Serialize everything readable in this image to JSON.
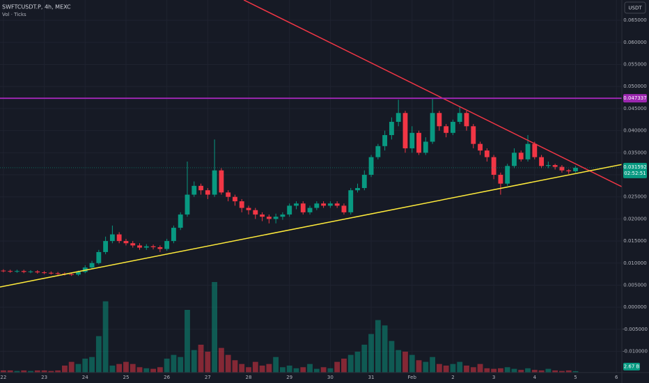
{
  "chart_data": {
    "type": "candlestick",
    "title": "SWFTCUSDT.P, 4h, MEXC",
    "subtitle": "Vol · Ticks",
    "currency": "USDT",
    "x": [
      0,
      1,
      2,
      3,
      4,
      5,
      6,
      7,
      8,
      9,
      10,
      11,
      12,
      13,
      14,
      15,
      16,
      17,
      18,
      19,
      20,
      21,
      22,
      23,
      24,
      25,
      26,
      27,
      28,
      29,
      30,
      31,
      32,
      33,
      34,
      35,
      36,
      37,
      38,
      39,
      40,
      41,
      42,
      43,
      44,
      45,
      46,
      47,
      48,
      49,
      50,
      51,
      52,
      53,
      54,
      55,
      56,
      57,
      58,
      59,
      60,
      61,
      62,
      63,
      64,
      65,
      66,
      67,
      68,
      69,
      70,
      71,
      72,
      73,
      74,
      75,
      76,
      77,
      78,
      79,
      80,
      81,
      82,
      83,
      84
    ],
    "open": [
      0.0083,
      0.0082,
      0.0081,
      0.0082,
      0.008,
      0.0081,
      0.0079,
      0.0078,
      0.0077,
      0.0076,
      0.0075,
      0.0074,
      0.008,
      0.009,
      0.01,
      0.0125,
      0.015,
      0.0165,
      0.015,
      0.0145,
      0.014,
      0.0135,
      0.0138,
      0.0136,
      0.0132,
      0.015,
      0.018,
      0.021,
      0.0255,
      0.0275,
      0.0265,
      0.0255,
      0.031,
      0.026,
      0.025,
      0.024,
      0.0225,
      0.022,
      0.021,
      0.0205,
      0.02,
      0.0205,
      0.021,
      0.023,
      0.0235,
      0.0215,
      0.0225,
      0.0235,
      0.023,
      0.0235,
      0.023,
      0.0215,
      0.0265,
      0.027,
      0.03,
      0.034,
      0.0365,
      0.039,
      0.042,
      0.044,
      0.036,
      0.0395,
      0.035,
      0.0375,
      0.044,
      0.041,
      0.0395,
      0.042,
      0.044,
      0.041,
      0.037,
      0.0355,
      0.034,
      0.03,
      0.028,
      0.032,
      0.035,
      0.0335,
      0.037,
      0.034,
      0.032,
      0.0322,
      0.0318,
      0.031,
      0.0308
    ],
    "high": [
      0.0086,
      0.0085,
      0.0085,
      0.0085,
      0.0084,
      0.0084,
      0.0082,
      0.0081,
      0.008,
      0.0079,
      0.0078,
      0.0083,
      0.0095,
      0.0105,
      0.013,
      0.016,
      0.0185,
      0.017,
      0.0155,
      0.015,
      0.0145,
      0.0143,
      0.0142,
      0.014,
      0.0155,
      0.0185,
      0.0215,
      0.033,
      0.0285,
      0.028,
      0.027,
      0.038,
      0.0315,
      0.0265,
      0.0255,
      0.0245,
      0.023,
      0.0225,
      0.0215,
      0.021,
      0.0212,
      0.0215,
      0.0235,
      0.024,
      0.024,
      0.023,
      0.024,
      0.024,
      0.024,
      0.024,
      0.0235,
      0.027,
      0.028,
      0.031,
      0.0345,
      0.037,
      0.04,
      0.043,
      0.047,
      0.0445,
      0.041,
      0.04,
      0.0385,
      0.0472,
      0.0445,
      0.0415,
      0.0425,
      0.0455,
      0.0445,
      0.0415,
      0.0375,
      0.036,
      0.0345,
      0.0305,
      0.0325,
      0.036,
      0.0355,
      0.039,
      0.0375,
      0.0345,
      0.033,
      0.0325,
      0.0322,
      0.0313,
      0.032
    ],
    "low": [
      0.0079,
      0.0078,
      0.0078,
      0.0077,
      0.0077,
      0.0076,
      0.0075,
      0.0074,
      0.0073,
      0.0072,
      0.0071,
      0.0071,
      0.0077,
      0.0087,
      0.0097,
      0.012,
      0.0145,
      0.0145,
      0.014,
      0.0135,
      0.013,
      0.013,
      0.0131,
      0.0125,
      0.0128,
      0.0145,
      0.0175,
      0.0205,
      0.025,
      0.0255,
      0.0245,
      0.025,
      0.0255,
      0.024,
      0.023,
      0.0215,
      0.021,
      0.02,
      0.0195,
      0.019,
      0.019,
      0.0198,
      0.0205,
      0.0222,
      0.021,
      0.021,
      0.022,
      0.0225,
      0.0225,
      0.0225,
      0.021,
      0.021,
      0.026,
      0.0265,
      0.0295,
      0.0335,
      0.0355,
      0.038,
      0.041,
      0.035,
      0.035,
      0.0345,
      0.0345,
      0.037,
      0.04,
      0.0385,
      0.039,
      0.0415,
      0.04,
      0.036,
      0.0345,
      0.033,
      0.029,
      0.0255,
      0.0275,
      0.0315,
      0.033,
      0.033,
      0.0335,
      0.0315,
      0.0315,
      0.0312,
      0.0305,
      0.0302,
      0.0305
    ],
    "close": [
      0.0082,
      0.0081,
      0.0082,
      0.008,
      0.0081,
      0.0079,
      0.0078,
      0.0077,
      0.0076,
      0.0075,
      0.0074,
      0.008,
      0.009,
      0.01,
      0.0125,
      0.015,
      0.0165,
      0.015,
      0.0145,
      0.014,
      0.0135,
      0.0138,
      0.0136,
      0.0132,
      0.015,
      0.018,
      0.021,
      0.0255,
      0.0275,
      0.0265,
      0.0255,
      0.031,
      0.026,
      0.025,
      0.024,
      0.0225,
      0.022,
      0.021,
      0.0205,
      0.02,
      0.0205,
      0.021,
      0.023,
      0.0235,
      0.0215,
      0.0225,
      0.0235,
      0.023,
      0.0235,
      0.023,
      0.0215,
      0.0265,
      0.027,
      0.03,
      0.034,
      0.0365,
      0.039,
      0.042,
      0.044,
      0.036,
      0.0395,
      0.035,
      0.0375,
      0.044,
      0.041,
      0.0395,
      0.042,
      0.044,
      0.041,
      0.037,
      0.0355,
      0.034,
      0.03,
      0.028,
      0.032,
      0.035,
      0.0335,
      0.037,
      0.034,
      0.032,
      0.0322,
      0.0318,
      0.031,
      0.0308,
      0.031592
    ],
    "volume": [
      4,
      4,
      3,
      4,
      3,
      4,
      4,
      3,
      4,
      13,
      20,
      16,
      26,
      29,
      68,
      133,
      13,
      16,
      20,
      16,
      10,
      8,
      7,
      10,
      26,
      33,
      29,
      117,
      42,
      52,
      39,
      169,
      46,
      33,
      23,
      16,
      10,
      20,
      13,
      16,
      29,
      10,
      13,
      8,
      10,
      16,
      7,
      10,
      8,
      20,
      26,
      33,
      39,
      52,
      72,
      98,
      88,
      59,
      42,
      39,
      33,
      23,
      20,
      29,
      16,
      13,
      16,
      20,
      13,
      10,
      16,
      8,
      7,
      8,
      10,
      7,
      5,
      8,
      5,
      4,
      7,
      4,
      3,
      4,
      2.67
    ],
    "volume_label": "2.67 B",
    "up_color": "#089981",
    "down_color": "#f23645",
    "xlim": [
      -0.5,
      90.8
    ],
    "xticks": [
      {
        "value": 0,
        "label": "22"
      },
      {
        "value": 6,
        "label": "23"
      },
      {
        "value": 12,
        "label": "24"
      },
      {
        "value": 18,
        "label": "25"
      },
      {
        "value": 24,
        "label": "26"
      },
      {
        "value": 30,
        "label": "27"
      },
      {
        "value": 36,
        "label": "28"
      },
      {
        "value": 42,
        "label": "29"
      },
      {
        "value": 48,
        "label": "30"
      },
      {
        "value": 54,
        "label": "31"
      },
      {
        "value": 60,
        "label": "Feb"
      },
      {
        "value": 66,
        "label": "2"
      },
      {
        "value": 72,
        "label": "3"
      },
      {
        "value": 78,
        "label": "4"
      },
      {
        "value": 84,
        "label": "5"
      },
      {
        "value": 90,
        "label": "6"
      }
    ],
    "ylim": [
      -0.0148,
      0.0696
    ],
    "yticks": [
      {
        "value": 0.065,
        "label": "0.065000"
      },
      {
        "value": 0.06,
        "label": "0.060000"
      },
      {
        "value": 0.055,
        "label": "0.055000"
      },
      {
        "value": 0.05,
        "label": "0.050000"
      },
      {
        "value": 0.045,
        "label": "0.045000"
      },
      {
        "value": 0.04,
        "label": "0.040000"
      },
      {
        "value": 0.035,
        "label": "0.035000"
      },
      {
        "value": 0.03,
        "label": "0.030000"
      },
      {
        "value": 0.025,
        "label": "0.025000"
      },
      {
        "value": 0.02,
        "label": "0.020000"
      },
      {
        "value": 0.015,
        "label": "0.015000"
      },
      {
        "value": 0.01,
        "label": "0.010000"
      },
      {
        "value": 0.005,
        "label": "0.005000"
      },
      {
        "value": 0,
        "label": "0.000000"
      },
      {
        "value": -0.005,
        "label": "-0.005000"
      },
      {
        "value": -0.01,
        "label": "-0.010000"
      }
    ],
    "grid": true,
    "hline": {
      "value": 0.047337,
      "label": "0.047337",
      "color": "#9c27b0"
    },
    "last_price": {
      "value": 0.031592,
      "label": "0.031592",
      "countdown": "02:52:51"
    },
    "lines": [
      {
        "color": "#f23645",
        "x": [
          35.3,
          90.8
        ],
        "y": [
          0.0696,
          0.0273
        ]
      },
      {
        "color": "#ffeb3b",
        "x": [
          -0.5,
          90.8
        ],
        "y": [
          0.00458,
          0.03234
        ]
      }
    ]
  }
}
